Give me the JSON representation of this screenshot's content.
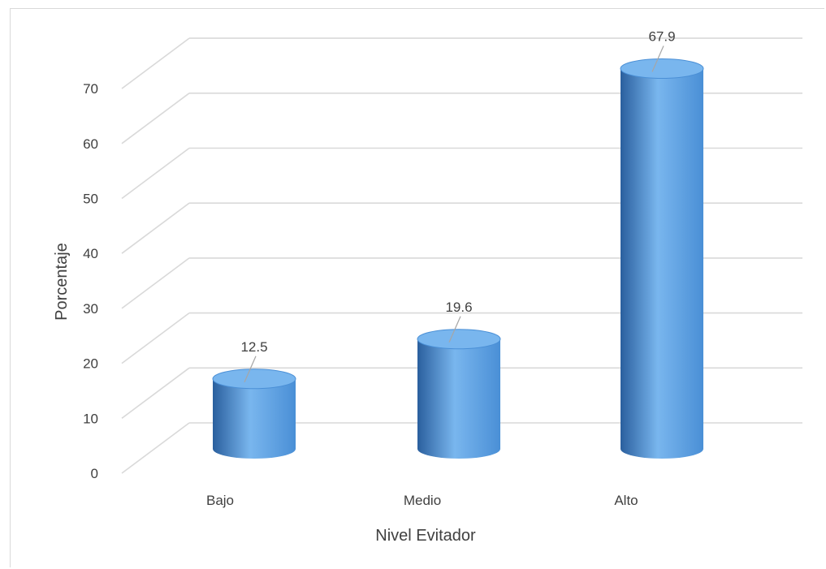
{
  "chart_data": {
    "type": "bar",
    "style": "3d-cylinder",
    "categories": [
      "Bajo",
      "Medio",
      "Alto"
    ],
    "values": [
      12.5,
      19.6,
      67.9
    ],
    "data_labels": [
      "12.5",
      "19.6",
      "67.9"
    ],
    "title": "",
    "xlabel": "Nivel Evitador",
    "ylabel": "Porcentaje",
    "ylim": [
      0,
      70
    ],
    "yticks": [
      0,
      10,
      20,
      30,
      40,
      50,
      60,
      70
    ],
    "grid": true,
    "legend": "none",
    "bar_color": "#4a8fd6",
    "bar_color_dark": "#2a5f9e",
    "bar_color_light": "#79b6ee",
    "grid_color": "#d9d9d9"
  }
}
